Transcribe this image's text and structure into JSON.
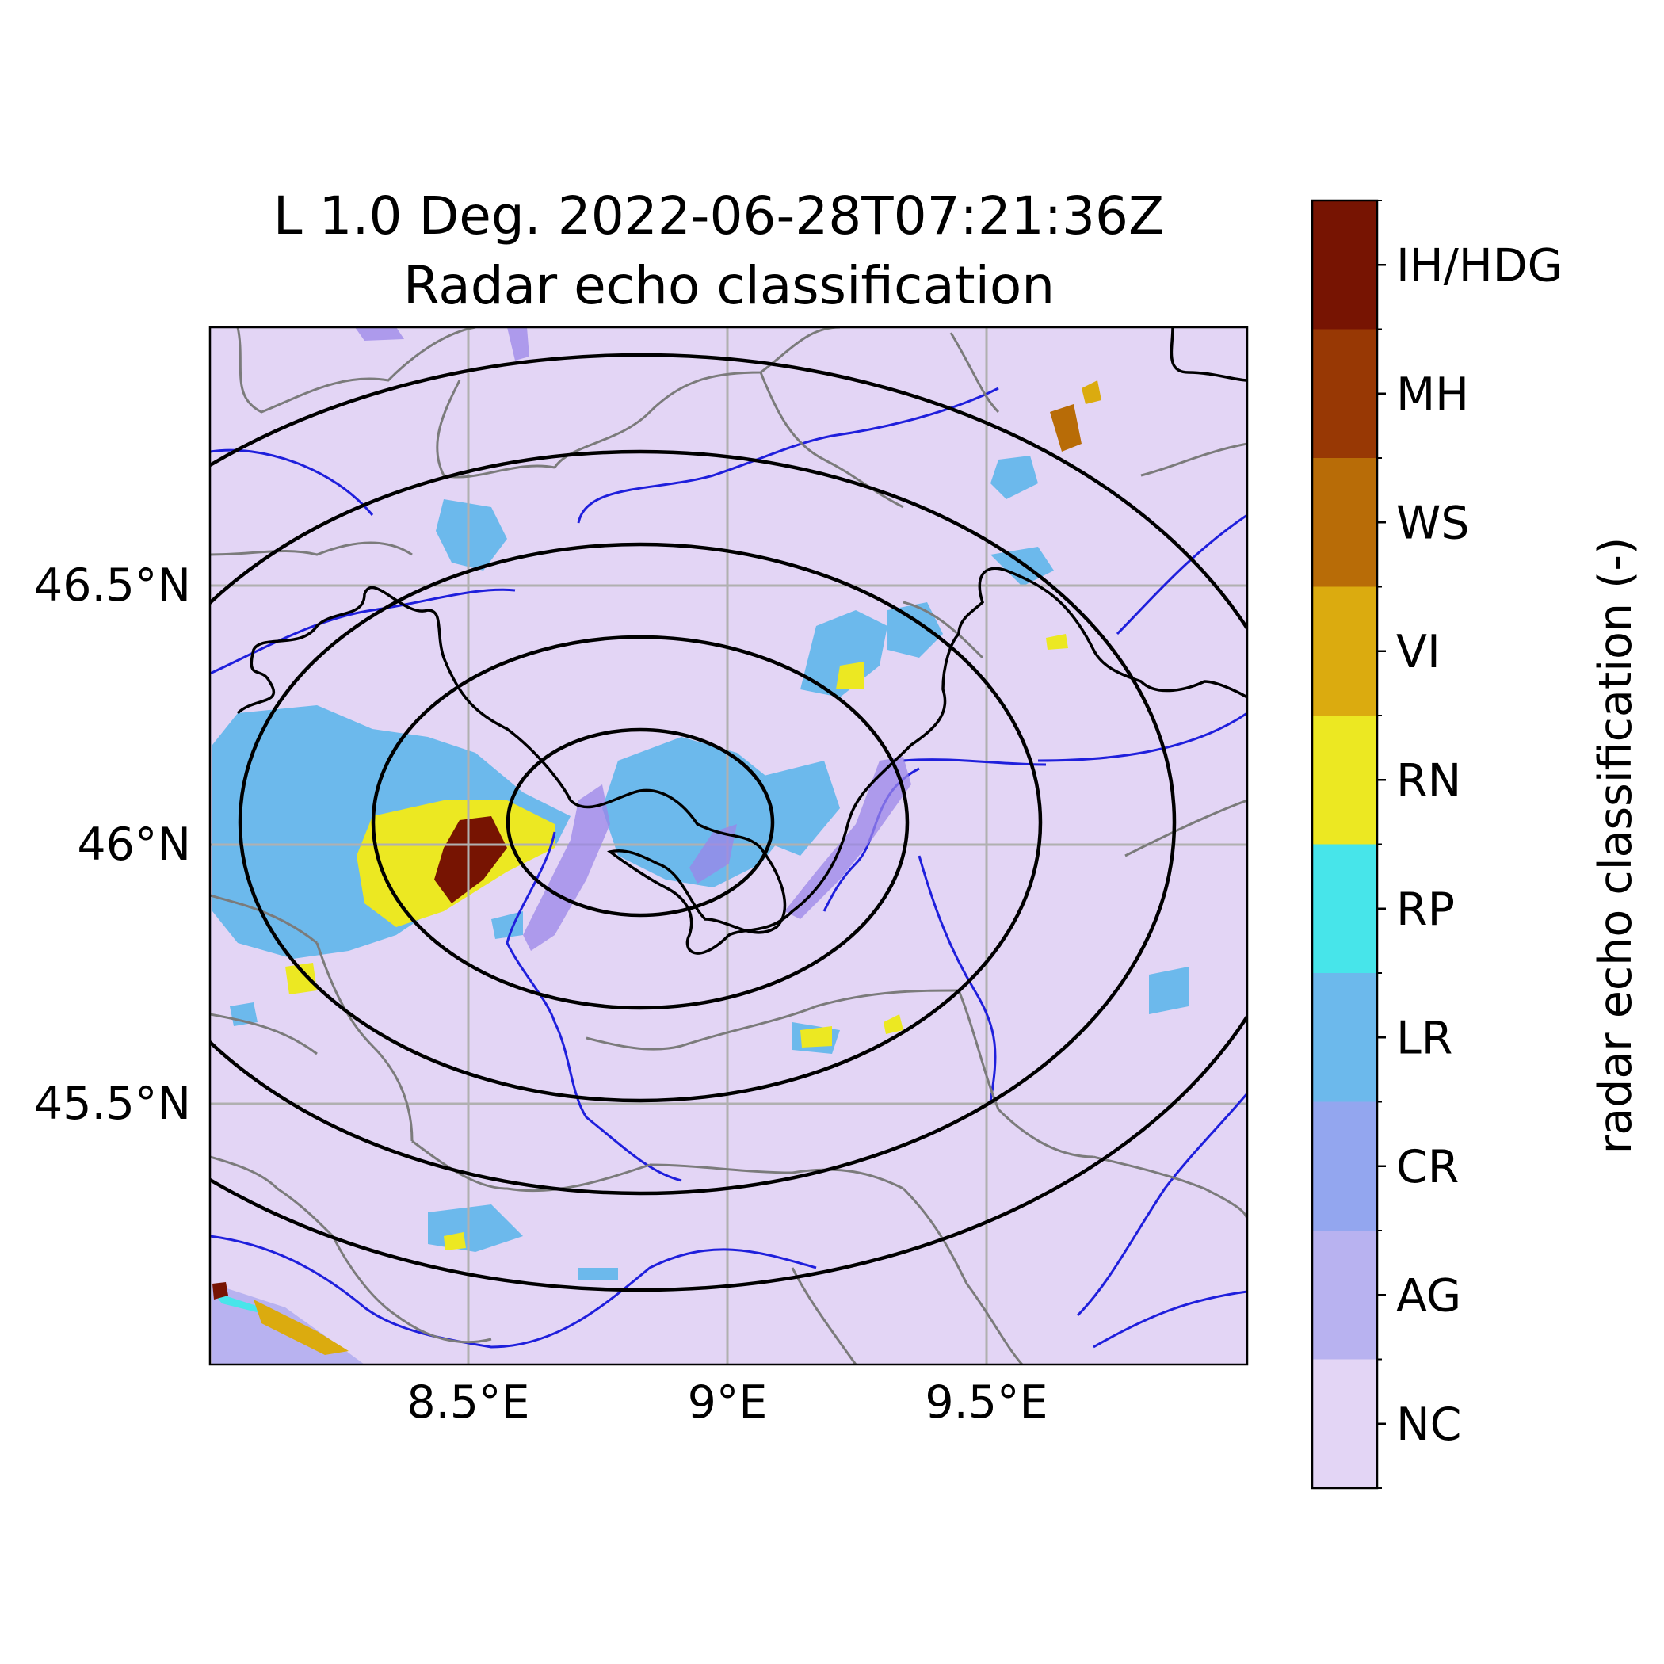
{
  "title_line1": "L 1.0 Deg. 2022-06-28T07:21:36Z",
  "title_line2": "Radar echo classification",
  "lon_labels": [
    "8.5°E",
    "9°E",
    "9.5°E"
  ],
  "lat_labels": [
    "46.5°N",
    "46°N",
    "45.5°N"
  ],
  "colorbar": {
    "label": "radar echo classification (-)",
    "classes": [
      {
        "code": "NC",
        "color": "#e3d5f5"
      },
      {
        "code": "AG",
        "color": "#b8b2f0"
      },
      {
        "code": "CR",
        "color": "#93a6ef"
      },
      {
        "code": "LR",
        "color": "#6cb9ec"
      },
      {
        "code": "RP",
        "color": "#47e5ea"
      },
      {
        "code": "RN",
        "color": "#ece822"
      },
      {
        "code": "VI",
        "color": "#dbab0f"
      },
      {
        "code": "WS",
        "color": "#b86c07"
      },
      {
        "code": "MH",
        "color": "#983804"
      },
      {
        "code": "IH/HDG",
        "color": "#771402"
      }
    ]
  },
  "map": {
    "background_class": "NC",
    "grid": true,
    "range_rings": 5,
    "lon_range": [
      8.0,
      10.0
    ],
    "lat_range": [
      45.0,
      47.0
    ]
  }
}
